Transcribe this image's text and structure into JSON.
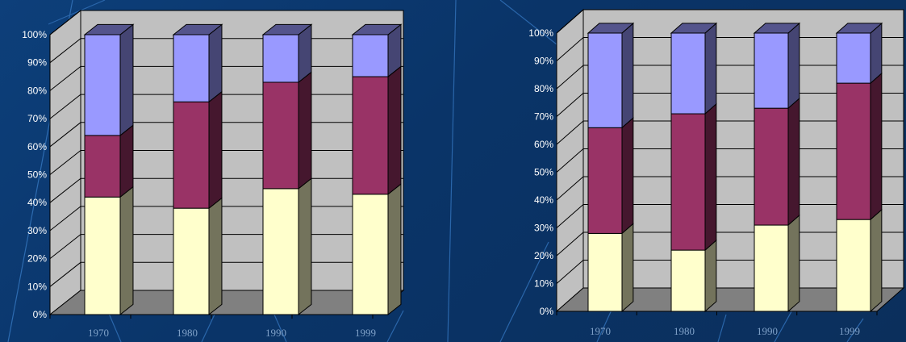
{
  "colors": {
    "series1": "#ffffcc",
    "series2": "#993366",
    "series3": "#9999ff",
    "wall": "#c0c0c0",
    "floor": "#808080"
  },
  "chart_data": [
    {
      "type": "bar",
      "stacked": "100%",
      "categories": [
        "1970",
        "1980",
        "1990",
        "1999"
      ],
      "series": [
        {
          "values": [
            42,
            38,
            45,
            43
          ]
        },
        {
          "values": [
            22,
            38,
            38,
            42
          ]
        },
        {
          "values": [
            36,
            24,
            17,
            15
          ]
        }
      ],
      "y_ticks": [
        "0%",
        "10%",
        "20%",
        "30%",
        "40%",
        "50%",
        "60%",
        "70%",
        "80%",
        "90%",
        "100%"
      ],
      "ylim": [
        0,
        100
      ],
      "grid": true,
      "legend": "none"
    },
    {
      "type": "bar",
      "stacked": "100%",
      "categories": [
        "1970",
        "1980",
        "1990",
        "1999"
      ],
      "series": [
        {
          "values": [
            28,
            22,
            31,
            33
          ]
        },
        {
          "values": [
            38,
            49,
            42,
            49
          ]
        },
        {
          "values": [
            34,
            29,
            27,
            18
          ]
        }
      ],
      "y_ticks": [
        "0%",
        "10%",
        "20%",
        "30%",
        "40%",
        "50%",
        "60%",
        "70%",
        "80%",
        "90%",
        "100%"
      ],
      "ylim": [
        0,
        100
      ],
      "grid": true,
      "legend": "none"
    }
  ]
}
